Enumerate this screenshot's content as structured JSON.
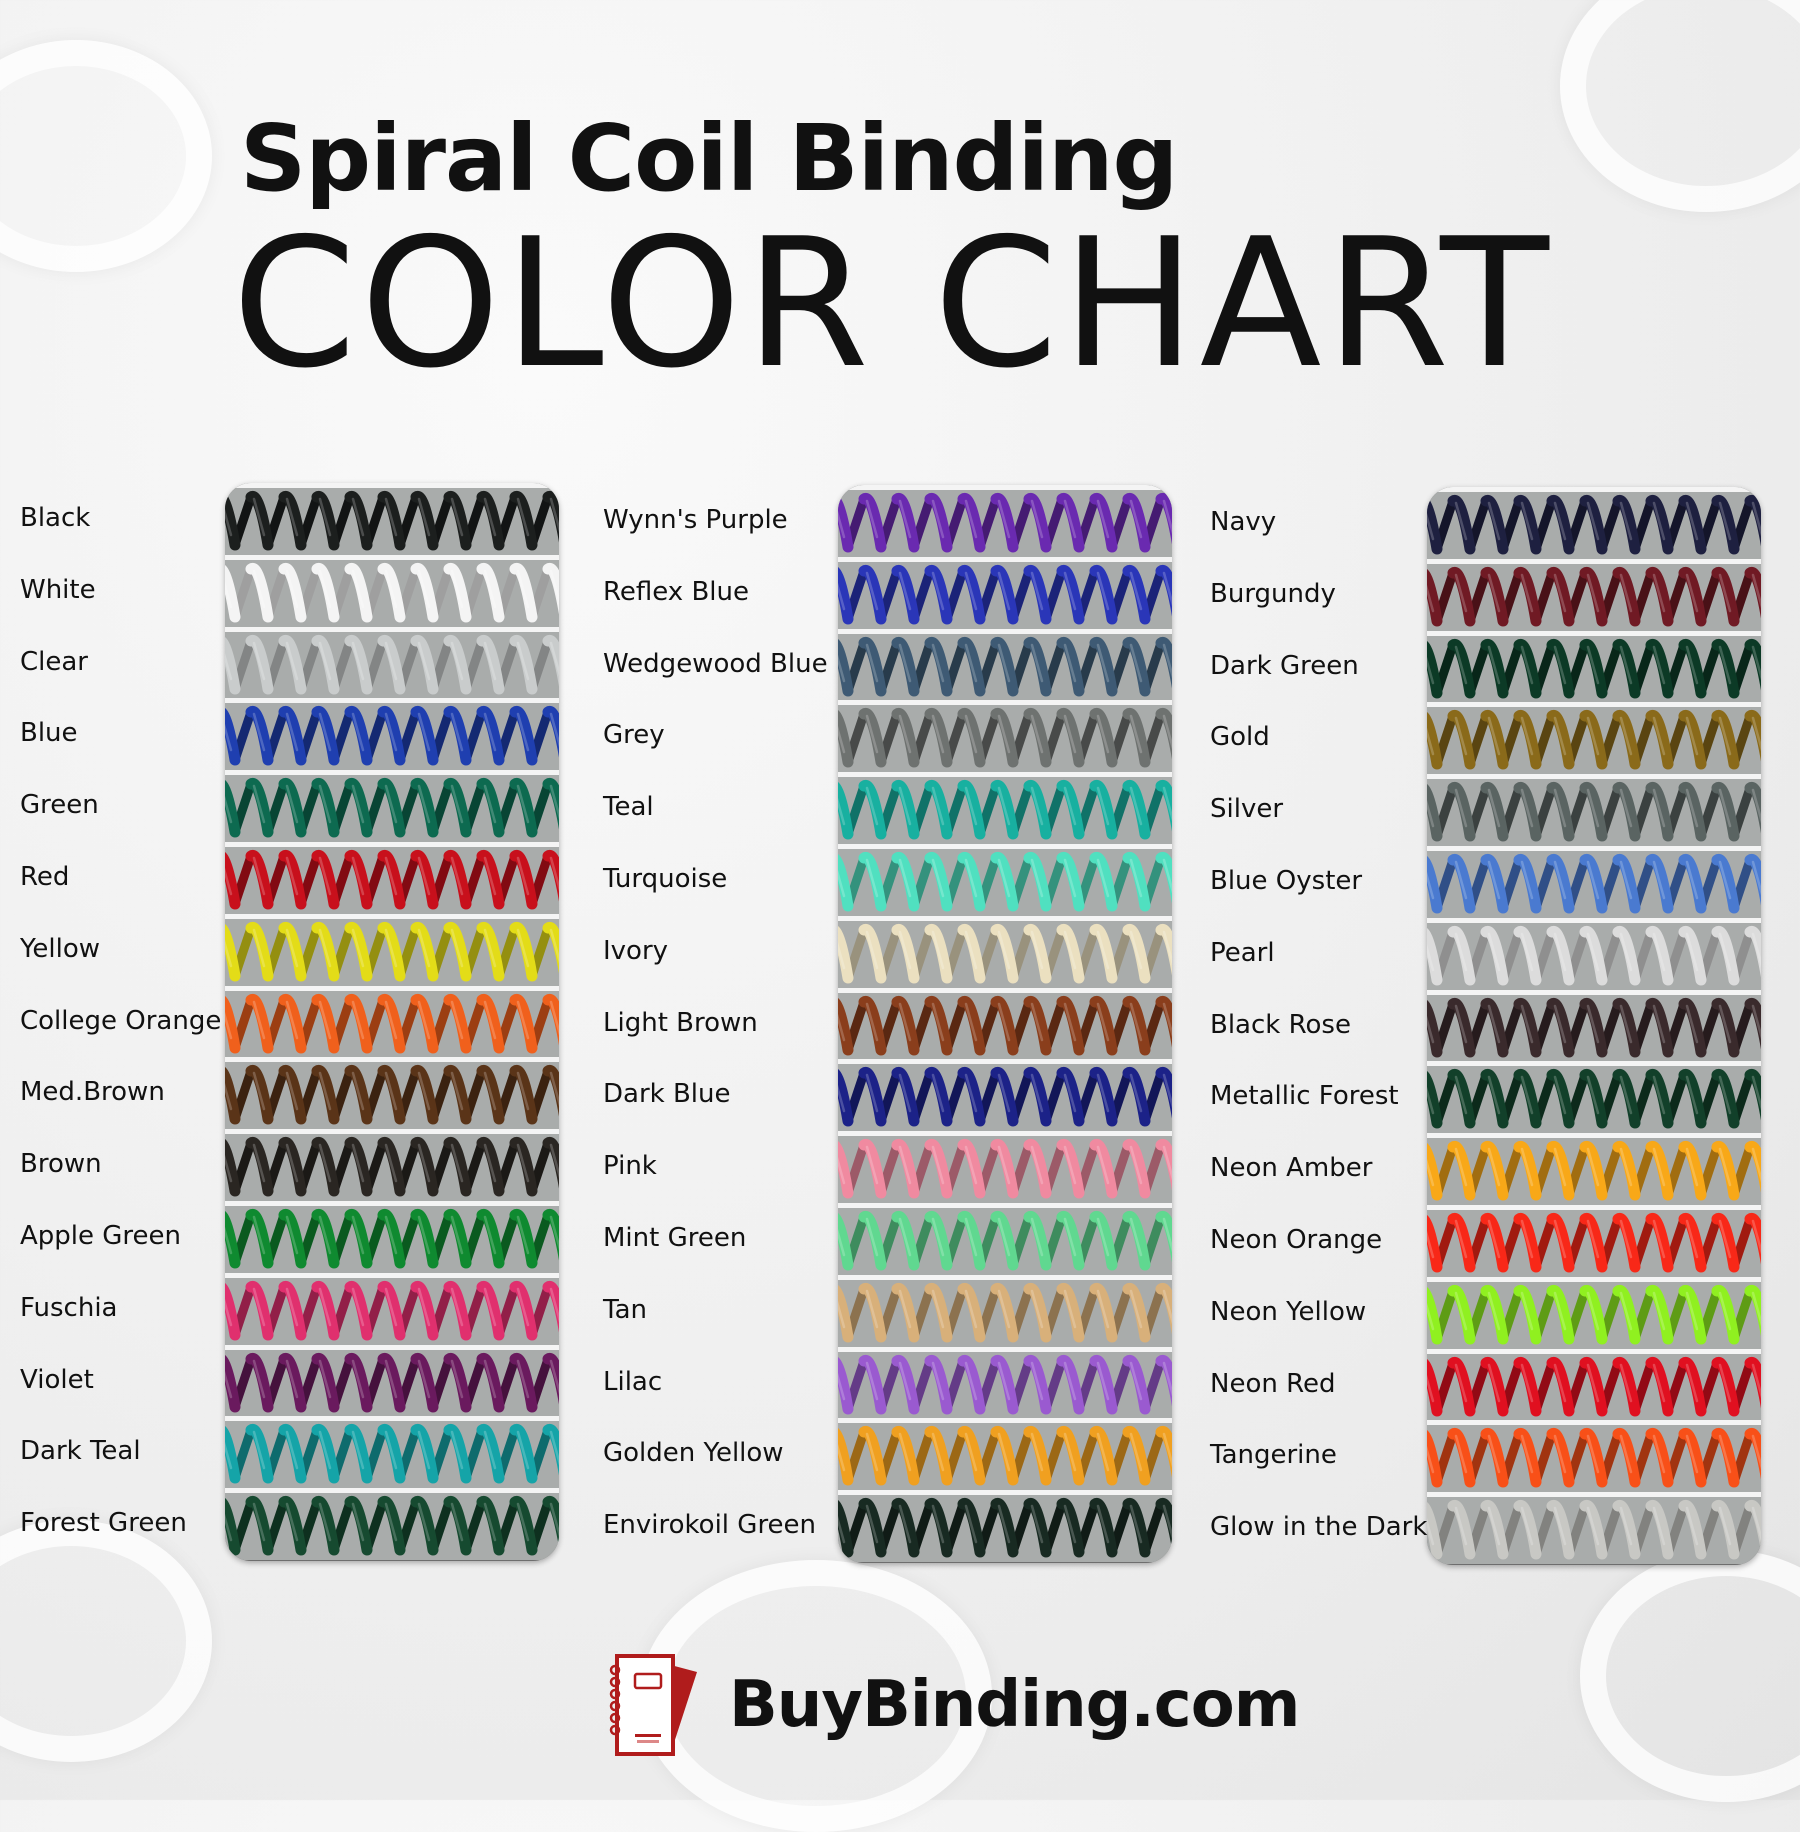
{
  "title": {
    "line1": "Spiral Coil Binding",
    "line2": "COLOR CHART"
  },
  "columns": [
    {
      "items": [
        {
          "name": "Black",
          "color": "#1c1f1e"
        },
        {
          "name": "White",
          "color": "#f4f4f4"
        },
        {
          "name": "Clear",
          "color": "#c9cccc"
        },
        {
          "name": "Blue",
          "color": "#1f3fb0"
        },
        {
          "name": "Green",
          "color": "#0d6a50"
        },
        {
          "name": "Red",
          "color": "#c8101c"
        },
        {
          "name": "Yellow",
          "color": "#e3dc18"
        },
        {
          "name": "College Orange",
          "color": "#f0601c"
        },
        {
          "name": "Med.Brown",
          "color": "#5a3418"
        },
        {
          "name": "Brown",
          "color": "#2a2622"
        },
        {
          "name": "Apple Green",
          "color": "#0f8a30"
        },
        {
          "name": "Fuschia",
          "color": "#e0306e"
        },
        {
          "name": "Violet",
          "color": "#6a1a5e"
        },
        {
          "name": "Dark Teal",
          "color": "#15a4a8"
        },
        {
          "name": "Forest Green",
          "color": "#164a30"
        }
      ]
    },
    {
      "items": [
        {
          "name": "Wynn's Purple",
          "color": "#6a2ab0"
        },
        {
          "name": "Reflex Blue",
          "color": "#2a36b8"
        },
        {
          "name": "Wedgewood Blue",
          "color": "#3e5a74"
        },
        {
          "name": "Grey",
          "color": "#6e7270"
        },
        {
          "name": "Teal",
          "color": "#18b0a0"
        },
        {
          "name": "Turquoise",
          "color": "#50e0c0"
        },
        {
          "name": "Ivory",
          "color": "#ebe0c0"
        },
        {
          "name": "Light Brown",
          "color": "#8a3e1c"
        },
        {
          "name": "Dark Blue",
          "color": "#1c2288"
        },
        {
          "name": "Pink",
          "color": "#f08aa0"
        },
        {
          "name": "Mint Green",
          "color": "#60d890"
        },
        {
          "name": "Tan",
          "color": "#d8b07a"
        },
        {
          "name": "Lilac",
          "color": "#9a5ad0"
        },
        {
          "name": "Golden Yellow",
          "color": "#f0a020"
        },
        {
          "name": "Envirokoil Green",
          "color": "#182a22"
        }
      ]
    },
    {
      "items": [
        {
          "name": "Navy",
          "color": "#1e2040"
        },
        {
          "name": "Burgundy",
          "color": "#701a24"
        },
        {
          "name": "Dark Green",
          "color": "#0c3a26"
        },
        {
          "name": "Gold",
          "color": "#8a6a1a"
        },
        {
          "name": "Silver",
          "color": "#5a6462"
        },
        {
          "name": "Blue Oyster",
          "color": "#4a7ad0"
        },
        {
          "name": "Pearl",
          "color": "#dcdcdc"
        },
        {
          "name": "Black Rose",
          "color": "#3a2a2c"
        },
        {
          "name": "Metallic Forest",
          "color": "#12402a"
        },
        {
          "name": "Neon Amber",
          "color": "#f8a818"
        },
        {
          "name": "Neon Orange",
          "color": "#f82818"
        },
        {
          "name": "Neon Yellow",
          "color": "#90f020"
        },
        {
          "name": "Neon Red",
          "color": "#e01020"
        },
        {
          "name": "Tangerine",
          "color": "#f85018"
        },
        {
          "name": "Glow in the Dark",
          "color": "#c8c8c4"
        }
      ]
    }
  ],
  "logo": {
    "text": "BuyBinding.com",
    "accent": "#b01c1c"
  }
}
